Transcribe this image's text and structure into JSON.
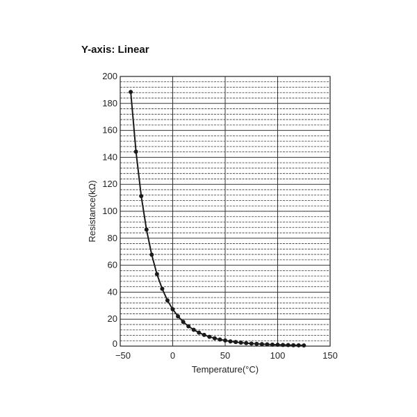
{
  "chart_data": {
    "type": "line",
    "title": "Y-axis: Linear",
    "xlabel": "Temperature(°C)",
    "ylabel": "Resistance(kΩ)",
    "xlim": [
      -50,
      150
    ],
    "ylim": [
      0,
      200
    ],
    "xticks": [
      -50,
      0,
      50,
      100,
      150
    ],
    "yticks": [
      0,
      20,
      40,
      60,
      80,
      100,
      120,
      140,
      160,
      180,
      200
    ],
    "grid": true,
    "line_color": "#1a1a1a",
    "x": [
      -40,
      -35,
      -30,
      -25,
      -20,
      -15,
      -10,
      -5,
      0,
      5,
      10,
      15,
      20,
      25,
      30,
      35,
      40,
      45,
      50,
      55,
      60,
      65,
      70,
      75,
      80,
      85,
      90,
      95,
      100,
      105,
      110,
      115,
      120,
      125
    ],
    "values": [
      188.5,
      144.2,
      111.3,
      86.4,
      67.8,
      53.4,
      42.5,
      33.9,
      27.3,
      22.1,
      18.0,
      14.7,
      12.1,
      10.0,
      8.3,
      6.9,
      5.8,
      4.9,
      4.2,
      3.5,
      3.0,
      2.6,
      2.2,
      1.9,
      1.7,
      1.5,
      1.3,
      1.1,
      1.0,
      0.86,
      0.76,
      0.67,
      0.6,
      0.53
    ]
  }
}
